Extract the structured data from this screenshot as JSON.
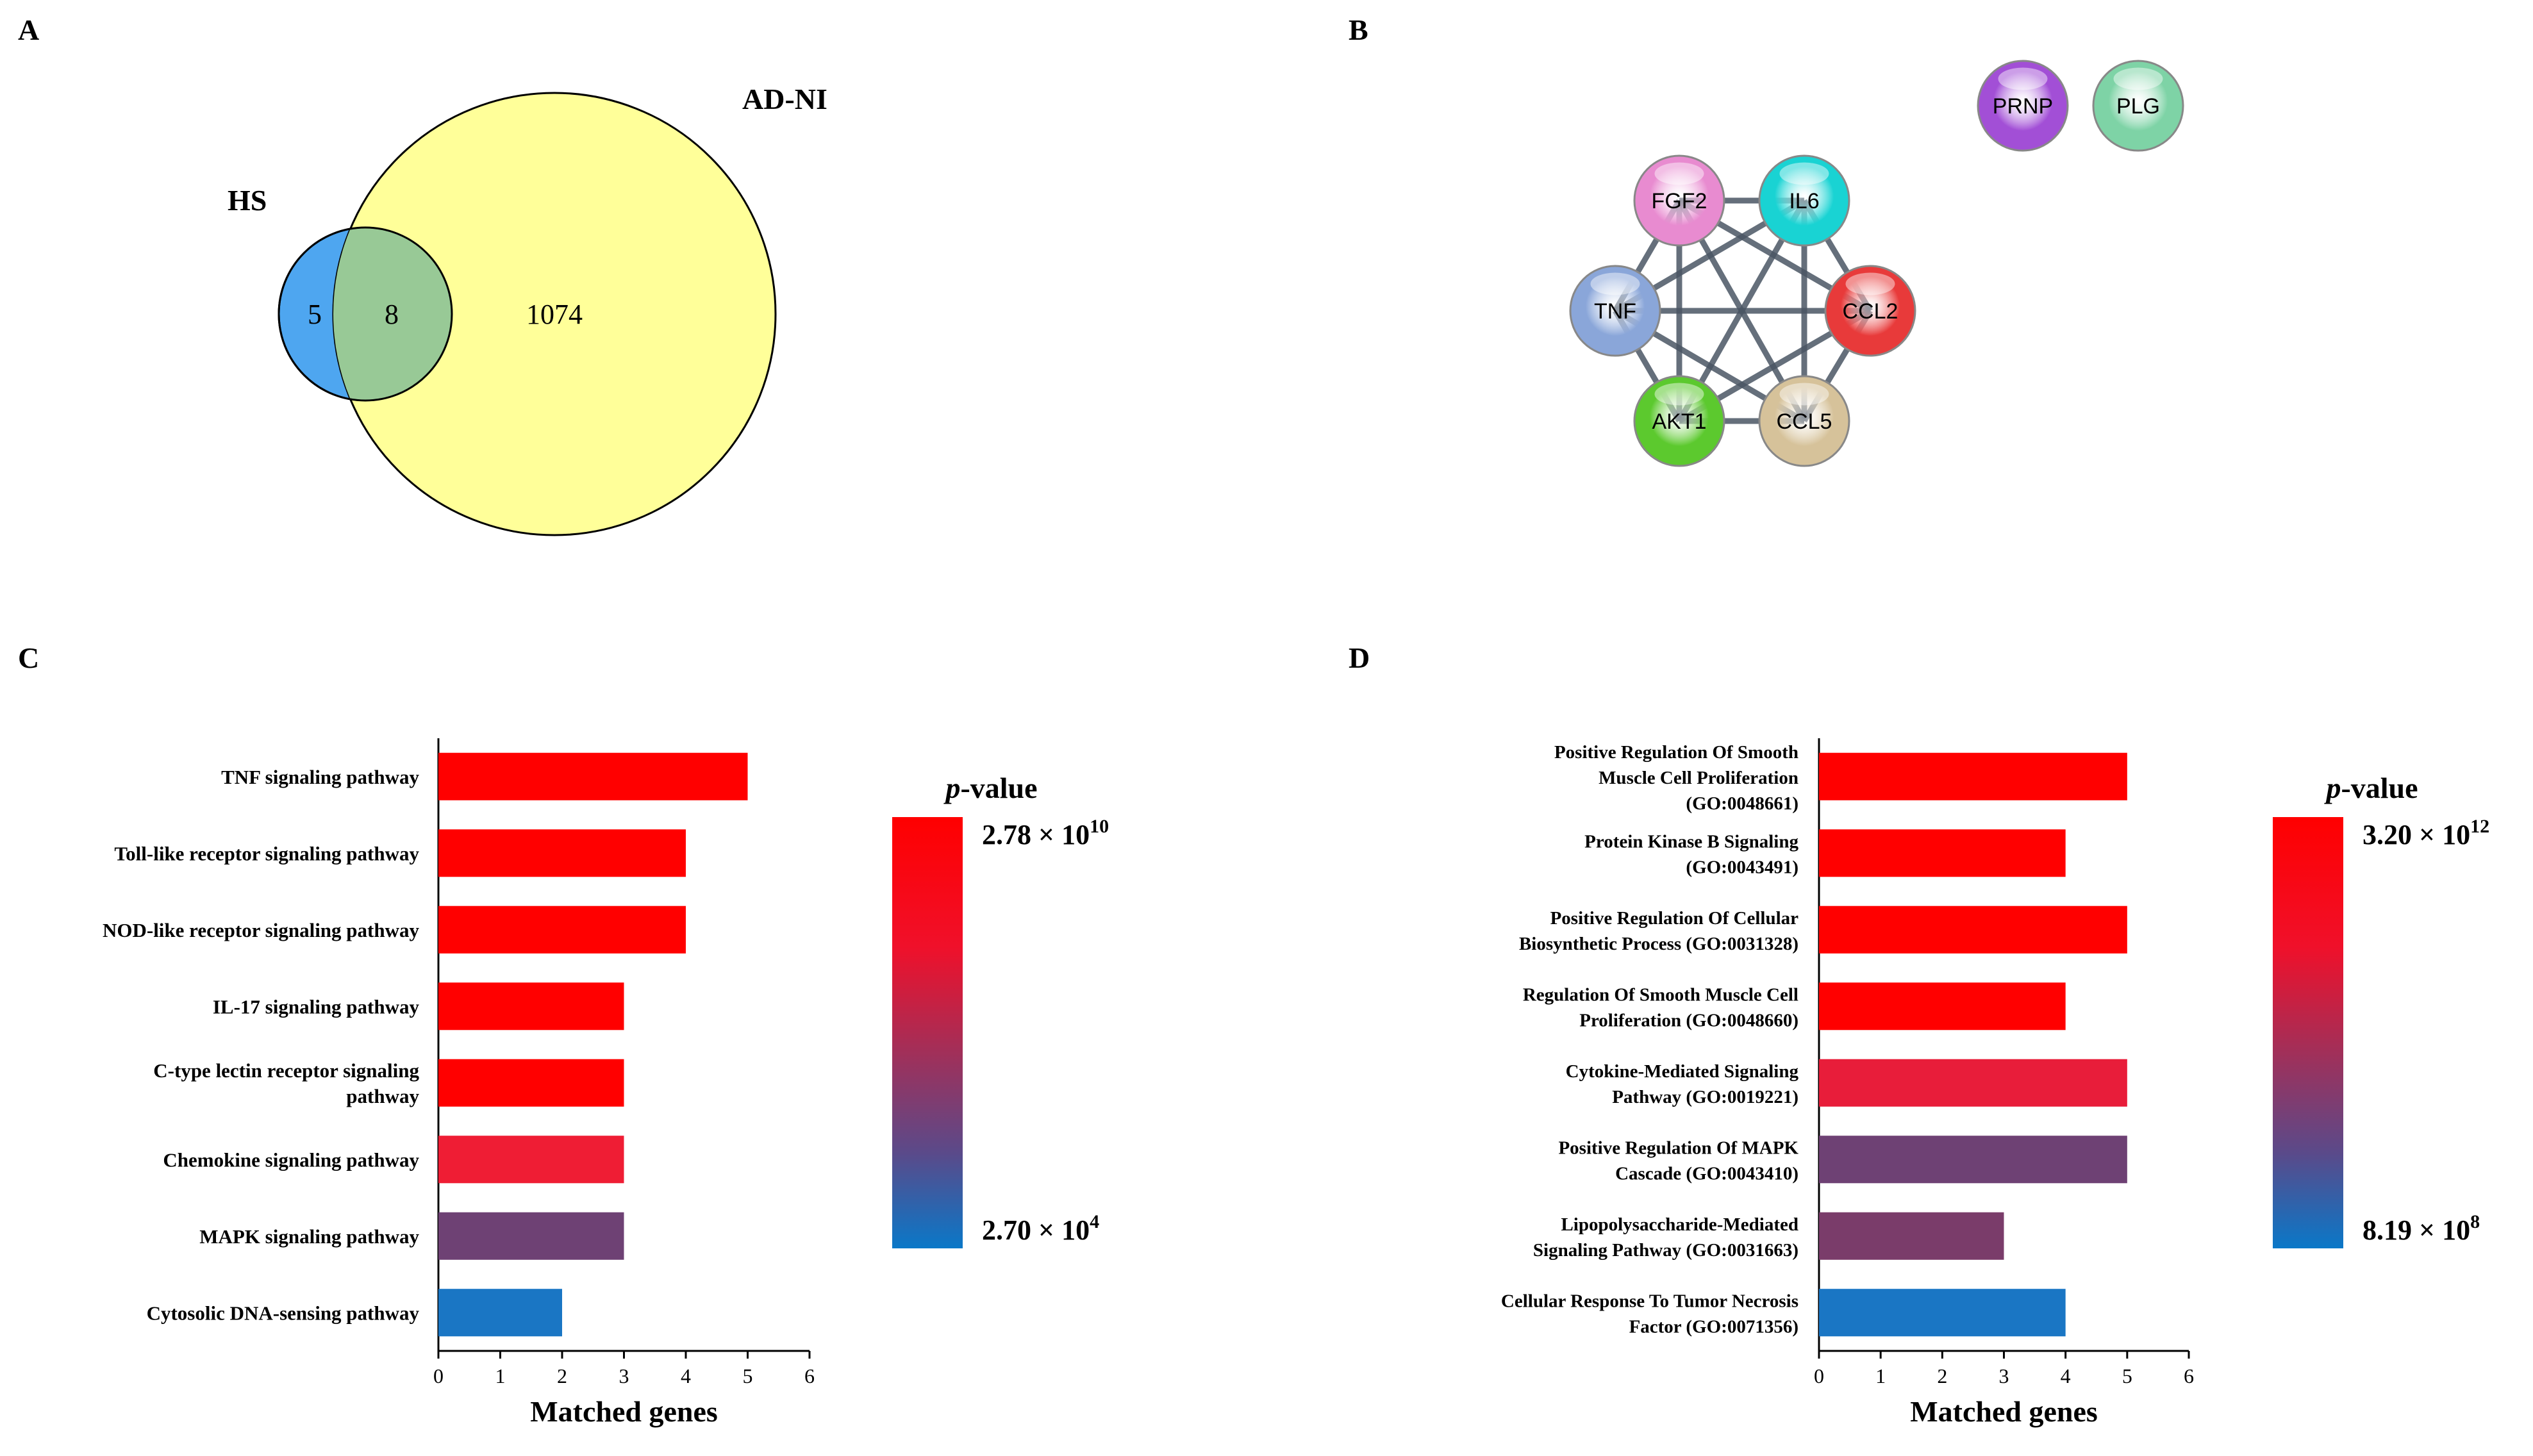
{
  "panels": {
    "a": "A",
    "b": "B",
    "c": "C",
    "d": "D"
  },
  "venn": {
    "left_set": "HS",
    "right_set": "AD-NI",
    "left_only": "5",
    "overlap": "8",
    "right_only": "1074",
    "colors": {
      "left": "#4ea6f0",
      "right": "#ffff99",
      "overlap": "#98c996"
    }
  },
  "network": {
    "nodes": [
      {
        "id": "FGF2",
        "label": "FGF2",
        "color": "#e88bd0"
      },
      {
        "id": "IL6",
        "label": "IL6",
        "color": "#19d3d3"
      },
      {
        "id": "CCL2",
        "label": "CCL2",
        "color": "#e83a3a"
      },
      {
        "id": "CCL5",
        "label": "CCL5",
        "color": "#d6c29a"
      },
      {
        "id": "AKT1",
        "label": "AKT1",
        "color": "#5cc92e"
      },
      {
        "id": "TNF",
        "label": "TNF",
        "color": "#8aa6d9"
      },
      {
        "id": "PRNP",
        "label": "PRNP",
        "color": "#a24fd6"
      },
      {
        "id": "PLG",
        "label": "PLG",
        "color": "#7ed3a6"
      }
    ],
    "edges": [
      [
        "FGF2",
        "IL6"
      ],
      [
        "FGF2",
        "TNF"
      ],
      [
        "FGF2",
        "AKT1"
      ],
      [
        "FGF2",
        "CCL5"
      ],
      [
        "FGF2",
        "CCL2"
      ],
      [
        "IL6",
        "CCL2"
      ],
      [
        "IL6",
        "TNF"
      ],
      [
        "IL6",
        "AKT1"
      ],
      [
        "IL6",
        "CCL5"
      ],
      [
        "TNF",
        "CCL2"
      ],
      [
        "TNF",
        "AKT1"
      ],
      [
        "TNF",
        "CCL5"
      ],
      [
        "AKT1",
        "CCL2"
      ],
      [
        "AKT1",
        "CCL5"
      ],
      [
        "CCL2",
        "CCL5"
      ]
    ]
  },
  "chart_data": [
    {
      "type": "bar",
      "orientation": "horizontal",
      "panel": "C",
      "categories": [
        [
          "TNF signaling pathway"
        ],
        [
          "Toll-like receptor signaling pathway"
        ],
        [
          "NOD-like receptor signaling pathway"
        ],
        [
          "IL-17 signaling pathway"
        ],
        [
          "C-type lectin receptor signaling",
          "pathway"
        ],
        [
          "Chemokine signaling pathway"
        ],
        [
          "MAPK signaling pathway"
        ],
        [
          "Cytosolic DNA-sensing pathway"
        ]
      ],
      "values": [
        5,
        4,
        4,
        3,
        3,
        3,
        3,
        2
      ],
      "colors": [
        "#ff0000",
        "#ff0000",
        "#ff0000",
        "#ff0000",
        "#ff0000",
        "#ef1d34",
        "#6e4174",
        "#1a76c4"
      ],
      "xlabel": "Matched genes",
      "xlim": [
        0,
        6
      ],
      "xticks": [
        "0",
        "1",
        "2",
        "3",
        "4",
        "5",
        "6"
      ],
      "legend": {
        "title_italic": "p",
        "title_rest": "-value",
        "top_mantissa": "2.78 × 10",
        "top_exp": "10",
        "bottom_mantissa": "2.70 × 10",
        "bottom_exp": "4"
      }
    },
    {
      "type": "bar",
      "orientation": "horizontal",
      "panel": "D",
      "categories": [
        [
          "Positive Regulation Of Smooth",
          "Muscle Cell Proliferation",
          "(GO:0048661)"
        ],
        [
          "Protein Kinase B Signaling",
          "(GO:0043491)"
        ],
        [
          "Positive Regulation Of Cellular",
          "Biosynthetic Process (GO:0031328)"
        ],
        [
          "Regulation Of Smooth Muscle Cell",
          "Proliferation (GO:0048660)"
        ],
        [
          "Cytokine-Mediated Signaling",
          "Pathway (GO:0019221)"
        ],
        [
          "Positive Regulation Of MAPK",
          "Cascade (GO:0043410)"
        ],
        [
          "Lipopolysaccharide-Mediated",
          "Signaling Pathway (GO:0031663)"
        ],
        [
          "Cellular Response To Tumor Necrosis",
          "Factor (GO:0071356)"
        ]
      ],
      "values": [
        5,
        4,
        5,
        4,
        5,
        5,
        3,
        4
      ],
      "colors": [
        "#ff0000",
        "#ff0000",
        "#ff0000",
        "#ff0000",
        "#e81d3a",
        "#6e4174",
        "#7a3c6a",
        "#1a76c4"
      ],
      "xlabel": "Matched genes",
      "xlim": [
        0,
        6
      ],
      "xticks": [
        "0",
        "1",
        "2",
        "3",
        "4",
        "5",
        "6"
      ],
      "legend": {
        "title_italic": "p",
        "title_rest": "-value",
        "top_mantissa": "3.20 × 10",
        "top_exp": "12",
        "bottom_mantissa": "8.19 × 10",
        "bottom_exp": "8"
      }
    }
  ]
}
